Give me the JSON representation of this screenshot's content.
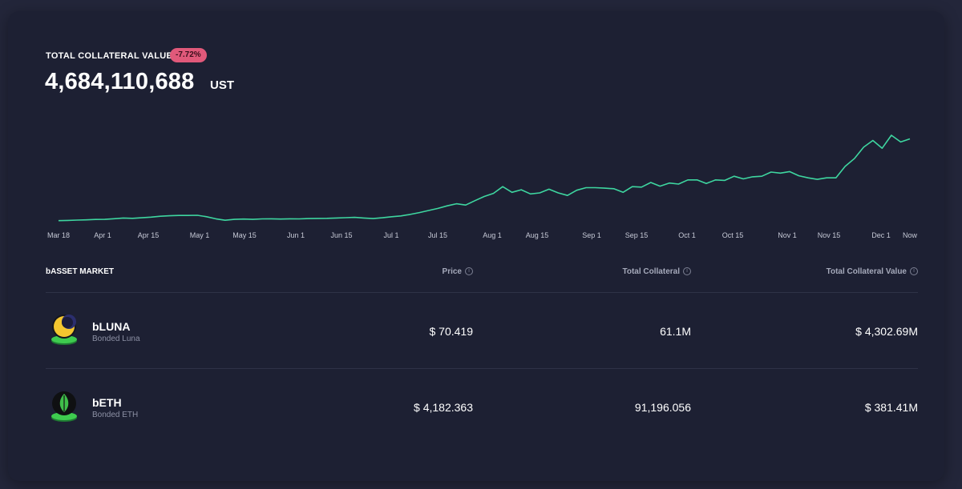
{
  "header": {
    "label": "TOTAL COLLATERAL VALUE",
    "change_badge": "-7.72%",
    "value": "4,684,110,688",
    "unit": "UST"
  },
  "colors": {
    "line": "#3ed6a0",
    "badge_bg": "#e1597a",
    "card_bg": "#1d2033",
    "page_bg": "#23263a"
  },
  "chart_data": {
    "type": "line",
    "title": "TOTAL COLLATERAL VALUE",
    "xlabel": "",
    "ylabel": "",
    "x_ticks": [
      "Mar 18",
      "Apr 1",
      "Apr 15",
      "May 1",
      "May 15",
      "Jun 1",
      "Jun 15",
      "Jul 1",
      "Jul 15",
      "Aug 1",
      "Aug 15",
      "Sep 1",
      "Sep 15",
      "Oct 1",
      "Oct 15",
      "Nov 1",
      "Nov 15",
      "Dec 1",
      "Now"
    ],
    "series": [
      {
        "name": "Total Collateral Value",
        "values": [
          0.05,
          0.1,
          0.15,
          0.2,
          0.28,
          0.3,
          0.42,
          0.55,
          0.5,
          0.6,
          0.72,
          0.9,
          0.98,
          1.05,
          1.05,
          1.08,
          0.8,
          0.4,
          0.12,
          0.3,
          0.35,
          0.3,
          0.38,
          0.4,
          0.36,
          0.4,
          0.38,
          0.45,
          0.48,
          0.5,
          0.55,
          0.62,
          0.68,
          0.55,
          0.45,
          0.6,
          0.8,
          0.95,
          1.25,
          1.6,
          2.0,
          2.4,
          2.9,
          3.3,
          3.05,
          3.9,
          4.7,
          5.3,
          6.6,
          5.5,
          6.0,
          5.2,
          5.4,
          6.1,
          5.4,
          4.9,
          5.9,
          6.4,
          6.4,
          6.3,
          6.2,
          5.5,
          6.6,
          6.5,
          7.4,
          6.7,
          7.3,
          7.1,
          7.9,
          7.9,
          7.2,
          7.9,
          7.8,
          8.6,
          8.1,
          8.5,
          8.6,
          9.4,
          9.2,
          9.5,
          8.7,
          8.3,
          8.0,
          8.3,
          8.3,
          10.5,
          12.0,
          14.2,
          15.5,
          14.0,
          16.5,
          15.2,
          15.8
        ]
      }
    ]
  },
  "market": {
    "title": "bASSET MARKET",
    "columns": [
      "Price",
      "Total Collateral",
      "Total Collateral Value"
    ],
    "info_glyph": "i",
    "rows": [
      {
        "icon": "luna-icon",
        "symbol": "bLUNA",
        "name": "Bonded Luna",
        "price": "$ 70.419",
        "total_collateral": "61.1M",
        "total_collateral_value": "$ 4,302.69M"
      },
      {
        "icon": "eth-icon",
        "symbol": "bETH",
        "name": "Bonded ETH",
        "price": "$ 4,182.363",
        "total_collateral": "91,196.056",
        "total_collateral_value": "$ 381.41M"
      }
    ]
  }
}
